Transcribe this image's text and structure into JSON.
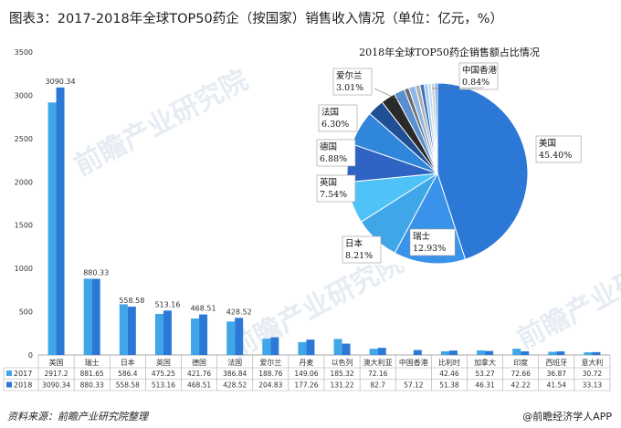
{
  "title": "图表3：2017-2018年全球TOP50药企（按国家）销售收入情况（单位：亿元，%）",
  "footer": {
    "source": "资料来源：前瞻产业研究院整理",
    "brand": "@前瞻经济学人APP"
  },
  "watermark": "前瞻产业研究院",
  "colors": {
    "series_2017": "#3fa6e8",
    "series_2018": "#2b78d6",
    "axis": "#aaaaaa",
    "grid": "#e6e6e6"
  },
  "chart_data": [
    {
      "type": "bar",
      "categories": [
        "美国",
        "瑞士",
        "日本",
        "英国",
        "德国",
        "法国",
        "爱尔兰",
        "丹麦",
        "以色列",
        "澳大利亚",
        "中国香港",
        "比利时",
        "加拿大",
        "印度",
        "西班牙",
        "意大利"
      ],
      "series": [
        {
          "name": "2017",
          "values": [
            2917.2,
            881.65,
            586.4,
            475.25,
            421.76,
            386.84,
            188.76,
            149.06,
            185.32,
            72.16,
            null,
            42.46,
            53.27,
            72.66,
            36.87,
            30.72
          ]
        },
        {
          "name": "2018",
          "values": [
            3090.34,
            880.33,
            558.58,
            513.16,
            468.51,
            428.52,
            204.83,
            177.26,
            131.22,
            82.7,
            57.12,
            51.38,
            46.31,
            42.22,
            41.54,
            33.13
          ]
        }
      ],
      "table_rows": [
        {
          "label": "2017",
          "cells": [
            "2917.2",
            "881.65",
            "586.4",
            "475.25",
            "421.76",
            "386.84",
            "188.76",
            "149.06",
            "185.32",
            "72.16",
            "",
            "42.46",
            "53.27",
            "72.66",
            "36.87",
            "30.72"
          ]
        },
        {
          "label": "2018",
          "cells": [
            "3090.34",
            "880.33",
            "558.58",
            "513.16",
            "468.51",
            "428.52",
            "204.83",
            "177.26",
            "131.22",
            "82.7",
            "57.12",
            "51.38",
            "46.31",
            "42.22",
            "41.54",
            "33.13"
          ]
        }
      ],
      "data_labels": [
        {
          "category": "美国",
          "series": "2018",
          "text": "3090.34"
        },
        {
          "category": "瑞士",
          "series": "2018",
          "text": "880.33"
        },
        {
          "category": "日本",
          "series": "2018",
          "text": "558.58"
        },
        {
          "category": "英国",
          "series": "2018",
          "text": "513.16"
        },
        {
          "category": "德国",
          "series": "2018",
          "text": "468.51"
        },
        {
          "category": "法国",
          "series": "2018",
          "text": "428.52"
        }
      ],
      "yticks": [
        0,
        500,
        1000,
        1500,
        2000,
        2500,
        3000,
        3500
      ],
      "ylim": [
        0,
        3500
      ],
      "grid": false,
      "legend_placement": "bottom-left (data table)"
    },
    {
      "type": "pie",
      "title": "2018年全球TOP50药企销售额占比情况",
      "slices": [
        {
          "label": "美国",
          "value": 45.4,
          "text": "45.40%"
        },
        {
          "label": "瑞士",
          "value": 12.93,
          "text": "12.93%"
        },
        {
          "label": "日本",
          "value": 8.21,
          "text": "8.21%"
        },
        {
          "label": "英国",
          "value": 7.54,
          "text": "7.54%"
        },
        {
          "label": "德国",
          "value": 6.88,
          "text": "6.88%"
        },
        {
          "label": "法国",
          "value": 6.3,
          "text": "6.30%"
        },
        {
          "label": "爱尔兰",
          "value": 3.01,
          "text": "3.01%"
        },
        {
          "label": "中国香港",
          "value": 0.84,
          "text": "0.84%"
        }
      ],
      "other_slices": [
        2.6,
        1.95,
        1.21,
        0.84,
        0.75,
        0.68,
        0.62,
        0.61,
        0.49
      ]
    }
  ]
}
